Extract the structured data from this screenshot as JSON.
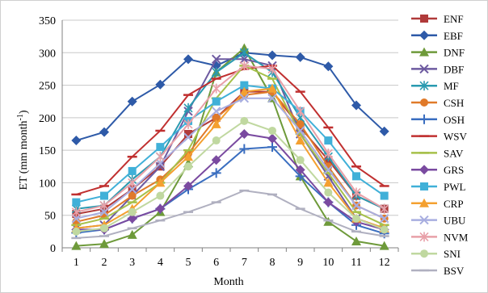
{
  "chart_data": {
    "type": "line",
    "xlabel": "Month",
    "ylabel": "ET (mm month",
    "ylabel_sup": "-1",
    "ylabel_close": ")",
    "ylim": [
      0,
      350
    ],
    "y_ticks": [
      0,
      50,
      100,
      150,
      200,
      250,
      300,
      350
    ],
    "x": [
      1,
      2,
      3,
      4,
      5,
      6,
      7,
      8,
      9,
      10,
      11,
      12
    ],
    "grid": "horizontal",
    "legend_position": "right",
    "series": [
      {
        "name": "ENF",
        "color": "#b03a3a",
        "marker": "square",
        "values": [
          52,
          60,
          90,
          125,
          175,
          200,
          240,
          240,
          185,
          135,
          80,
          60
        ]
      },
      {
        "name": "EBF",
        "color": "#2e5aa8",
        "marker": "diamond",
        "values": [
          165,
          178,
          225,
          251,
          290,
          280,
          300,
          296,
          293,
          279,
          219,
          179
        ]
      },
      {
        "name": "DNF",
        "color": "#6e9a3a",
        "marker": "triangle",
        "values": [
          3,
          6,
          20,
          55,
          130,
          270,
          307,
          230,
          110,
          40,
          10,
          3
        ]
      },
      {
        "name": "DBF",
        "color": "#6d5aa0",
        "marker": "x",
        "values": [
          30,
          35,
          80,
          125,
          210,
          290,
          290,
          280,
          175,
          110,
          45,
          30
        ]
      },
      {
        "name": "MF",
        "color": "#2a9ab0",
        "marker": "star",
        "values": [
          60,
          65,
          105,
          140,
          215,
          270,
          300,
          270,
          200,
          140,
          80,
          60
        ]
      },
      {
        "name": "CSH",
        "color": "#e07a2a",
        "marker": "circle",
        "values": [
          40,
          50,
          80,
          105,
          145,
          200,
          235,
          240,
          190,
          125,
          65,
          45
        ]
      },
      {
        "name": "OSH",
        "color": "#3a6ec0",
        "marker": "plus",
        "values": [
          23,
          28,
          45,
          60,
          90,
          115,
          152,
          155,
          110,
          70,
          35,
          22
        ]
      },
      {
        "name": "WSV",
        "color": "#c03030",
        "marker": "dash",
        "values": [
          82,
          95,
          140,
          180,
          235,
          260,
          275,
          280,
          240,
          185,
          125,
          95
        ]
      },
      {
        "name": "SAV",
        "color": "#a6c04a",
        "marker": "dash",
        "values": [
          35,
          45,
          70,
          100,
          150,
          230,
          280,
          260,
          175,
          115,
          55,
          35
        ]
      },
      {
        "name": "GRS",
        "color": "#7a4aa0",
        "marker": "diamond",
        "values": [
          28,
          28,
          45,
          60,
          95,
          135,
          175,
          168,
          120,
          70,
          40,
          28
        ]
      },
      {
        "name": "PWL",
        "color": "#40b0d8",
        "marker": "square",
        "values": [
          70,
          80,
          118,
          155,
          195,
          225,
          250,
          245,
          210,
          165,
          110,
          80
        ]
      },
      {
        "name": "CRP",
        "color": "#f4a030",
        "marker": "triangle",
        "values": [
          30,
          35,
          60,
          100,
          140,
          190,
          240,
          245,
          165,
          100,
          45,
          30
        ]
      },
      {
        "name": "UBU",
        "color": "#a8aee0",
        "marker": "x",
        "values": [
          45,
          55,
          90,
          130,
          170,
          210,
          230,
          230,
          180,
          120,
          65,
          45
        ]
      },
      {
        "name": "NVM",
        "color": "#e8a0a8",
        "marker": "star",
        "values": [
          55,
          65,
          100,
          140,
          190,
          245,
          280,
          275,
          210,
          145,
          85,
          60
        ]
      },
      {
        "name": "SNI",
        "color": "#c0d8a0",
        "marker": "circle",
        "values": [
          25,
          30,
          55,
          80,
          125,
          165,
          195,
          180,
          135,
          85,
          45,
          28
        ]
      },
      {
        "name": "BSV",
        "color": "#b0b0c0",
        "marker": "dash",
        "values": [
          15,
          18,
          30,
          42,
          55,
          70,
          88,
          82,
          60,
          42,
          25,
          18
        ]
      }
    ]
  }
}
